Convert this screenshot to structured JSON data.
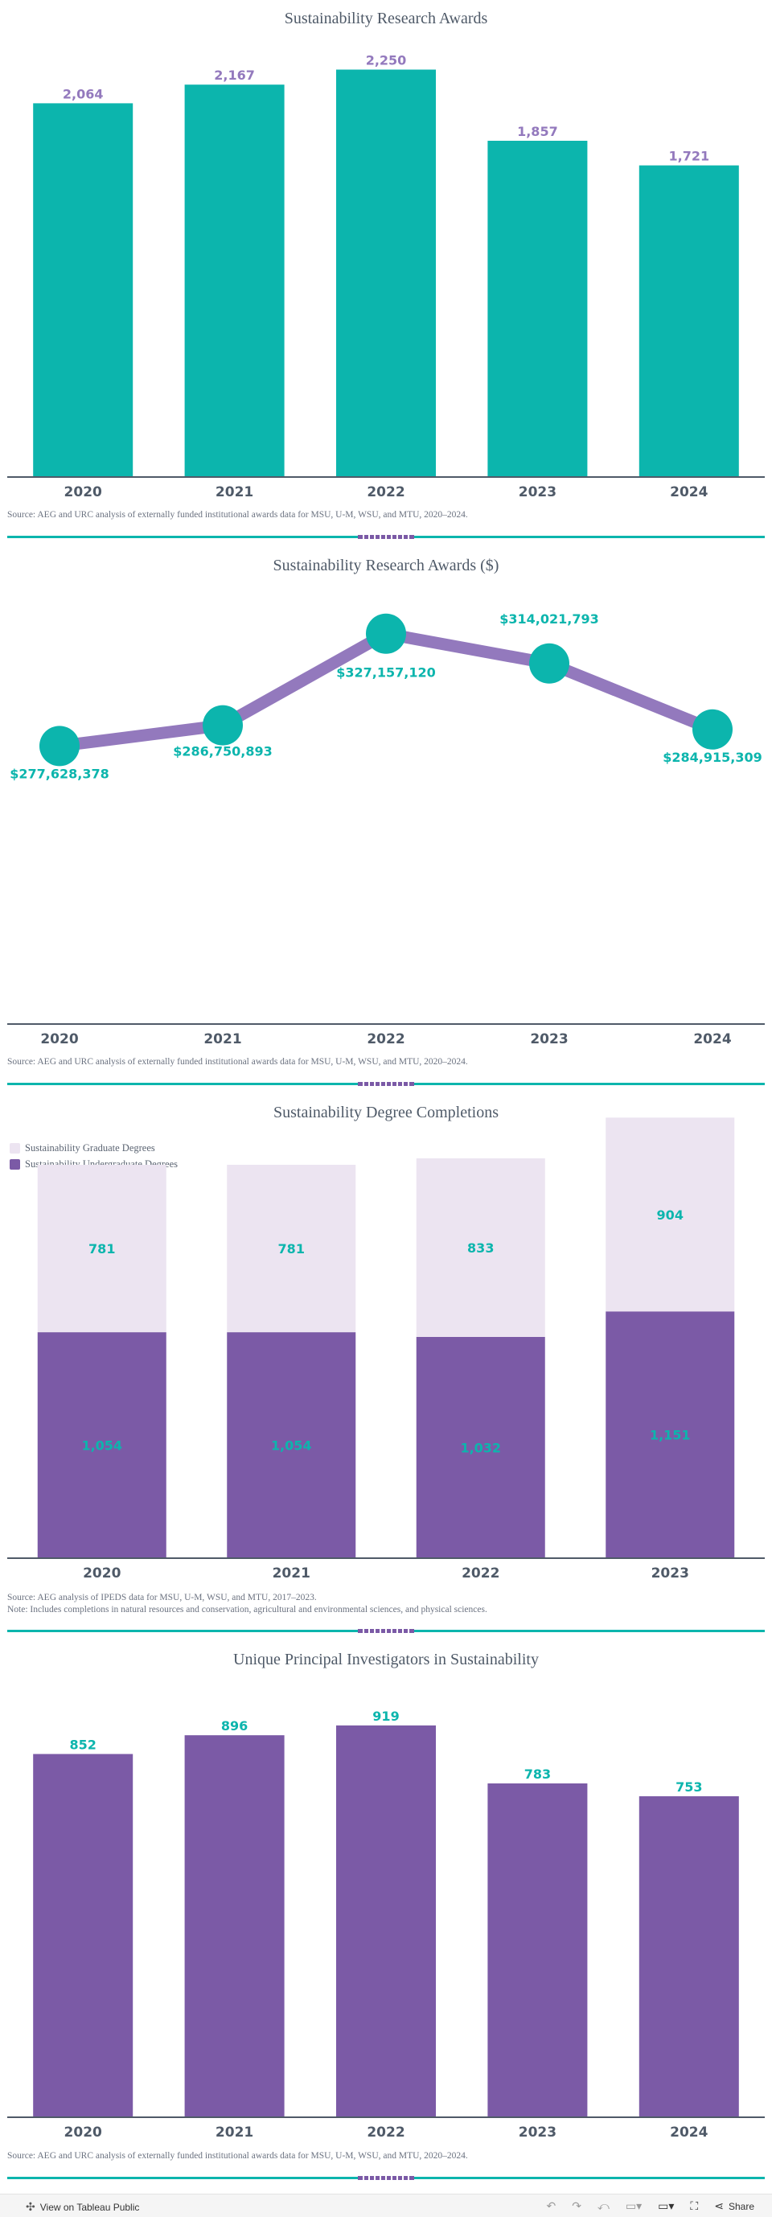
{
  "colors": {
    "teal": "#0cb5ad",
    "purple": "#7b5aa6",
    "purple_line": "#9379bd",
    "lavender": "#ece4f1",
    "axis": "#4f5a68"
  },
  "charts": [
    {
      "title": "Sustainability Research Awards",
      "source": "Source: AEG and URC analysis of externally funded institutional awards data for MSU, U-M, WSU, and MTU, 2020–2024.",
      "chart_data": {
        "type": "bar",
        "categories": [
          "2020",
          "2021",
          "2022",
          "2023",
          "2024"
        ],
        "values": [
          2064,
          2167,
          2250,
          1857,
          1721
        ],
        "labels": [
          "2,064",
          "2,167",
          "2,250",
          "1,857",
          "1,721"
        ],
        "ylim": [
          0,
          2470
        ]
      }
    },
    {
      "title": "Sustainability Research Awards ($)",
      "source": "Source: AEG and URC analysis of externally funded institutional awards data for MSU, U-M, WSU, and MTU, 2020–2024.",
      "chart_data": {
        "type": "line",
        "categories": [
          "2020",
          "2021",
          "2022",
          "2023",
          "2024"
        ],
        "values": [
          277628378,
          286750893,
          327157120,
          314021793,
          284915309
        ],
        "labels": [
          "$277,628,378",
          "$286,750,893",
          "$327,157,120",
          "$314,021,793",
          "$284,915,309"
        ],
        "ylim": [
          155000000,
          337000000
        ]
      }
    },
    {
      "title": "Sustainability Degree Completions",
      "source": "Source: AEG analysis of IPEDS data for MSU, U-M, WSU, and MTU, 2017–2023.",
      "note": "Note: Includes completions in natural resources and conservation, agricultural and environmental sciences, and physical sciences.",
      "legend": [
        "Sustainability Graduate Degrees",
        "Sustainability Undergraduate Degrees"
      ],
      "chart_data": {
        "type": "bar",
        "stacked": true,
        "categories": [
          "2020",
          "2021",
          "2022",
          "2023"
        ],
        "series": [
          {
            "name": "Sustainability Undergraduate Degrees",
            "values": [
              1054,
              1054,
              1032,
              1151
            ],
            "labels": [
              "1,054",
              "1,054",
              "1,032",
              "1,151"
            ]
          },
          {
            "name": "Sustainability Graduate Degrees",
            "values": [
              781,
              781,
              833,
              904
            ],
            "labels": [
              "781",
              "781",
              "833",
              "904"
            ]
          }
        ],
        "ylim": [
          0,
          2090
        ]
      }
    },
    {
      "title": "Unique Principal Investigators in Sustainability",
      "source": "Source: AEG and URC analysis of externally funded institutional awards data for MSU, U-M, WSU, and MTU, 2020–2024.",
      "chart_data": {
        "type": "bar",
        "categories": [
          "2020",
          "2021",
          "2022",
          "2023",
          "2024"
        ],
        "values": [
          852,
          896,
          919,
          783,
          753
        ],
        "labels": [
          "852",
          "896",
          "919",
          "783",
          "753"
        ],
        "ylim": [
          0,
          1000
        ]
      }
    }
  ],
  "footer": {
    "view_label": "View on Tableau Public",
    "share_label": "Share"
  }
}
